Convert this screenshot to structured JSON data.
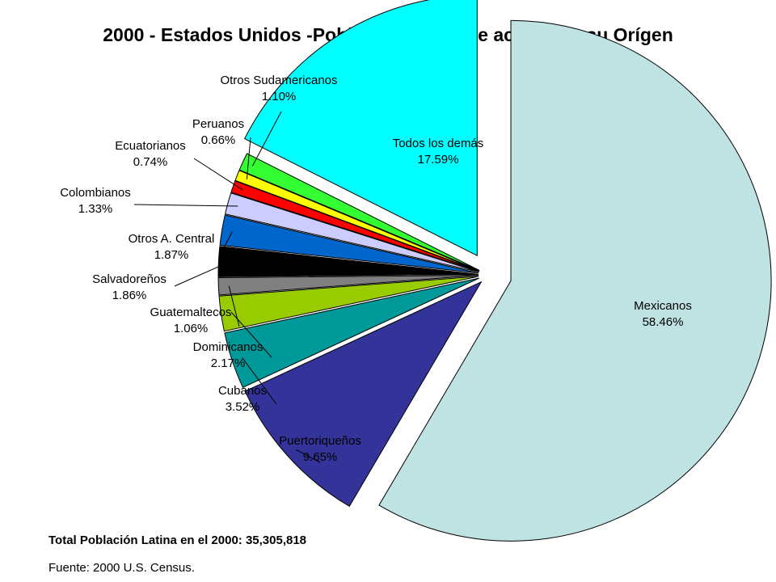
{
  "title": "2000 - Estados Unidos -Población Latina de acuerdo a su Orígen",
  "chart_data": {
    "type": "pie",
    "title": "2000 - Estados Unidos -Población Latina de acuerdo a su Orígen",
    "slices": [
      {
        "label": "Mexicanos",
        "value": 58.46,
        "display": "58.46%",
        "color": "#BFE3E3"
      },
      {
        "label": "Puertoriqueños",
        "value": 9.65,
        "display": "9.65%",
        "color": "#333399"
      },
      {
        "label": "Cubanos",
        "value": 3.52,
        "display": "3.52%",
        "color": "#009999"
      },
      {
        "label": "Dominicanos",
        "value": 2.17,
        "display": "2.17%",
        "color": "#99CC00"
      },
      {
        "label": "Guatemaltecos",
        "value": 1.06,
        "display": "1.06%",
        "color": "#808080"
      },
      {
        "label": "Salvadoreños",
        "value": 1.86,
        "display": "1.86%",
        "color": "#000000"
      },
      {
        "label": "Otros A. Central",
        "value": 1.87,
        "display": "1.87%",
        "color": "#0066CC"
      },
      {
        "label": "Colombianos",
        "value": 1.33,
        "display": "1.33%",
        "color": "#CCCCFF"
      },
      {
        "label": "Ecuatorianos",
        "value": 0.74,
        "display": "0.74%",
        "color": "#FF0000"
      },
      {
        "label": "Peruanos",
        "value": 0.66,
        "display": "0.66%",
        "color": "#FFFF00"
      },
      {
        "label": "Otros Sudamericanos",
        "value": 1.1,
        "display": "1.10%",
        "color": "#33FF33"
      },
      {
        "label": "Todos los demás",
        "value": 17.59,
        "display": "17.59%",
        "color": "#00FFFF"
      }
    ],
    "exploded": true
  },
  "footer": {
    "total": "Total Población Latina en el 2000: 35,305,818",
    "source": "Fuente: 2000 U.S. Census."
  }
}
